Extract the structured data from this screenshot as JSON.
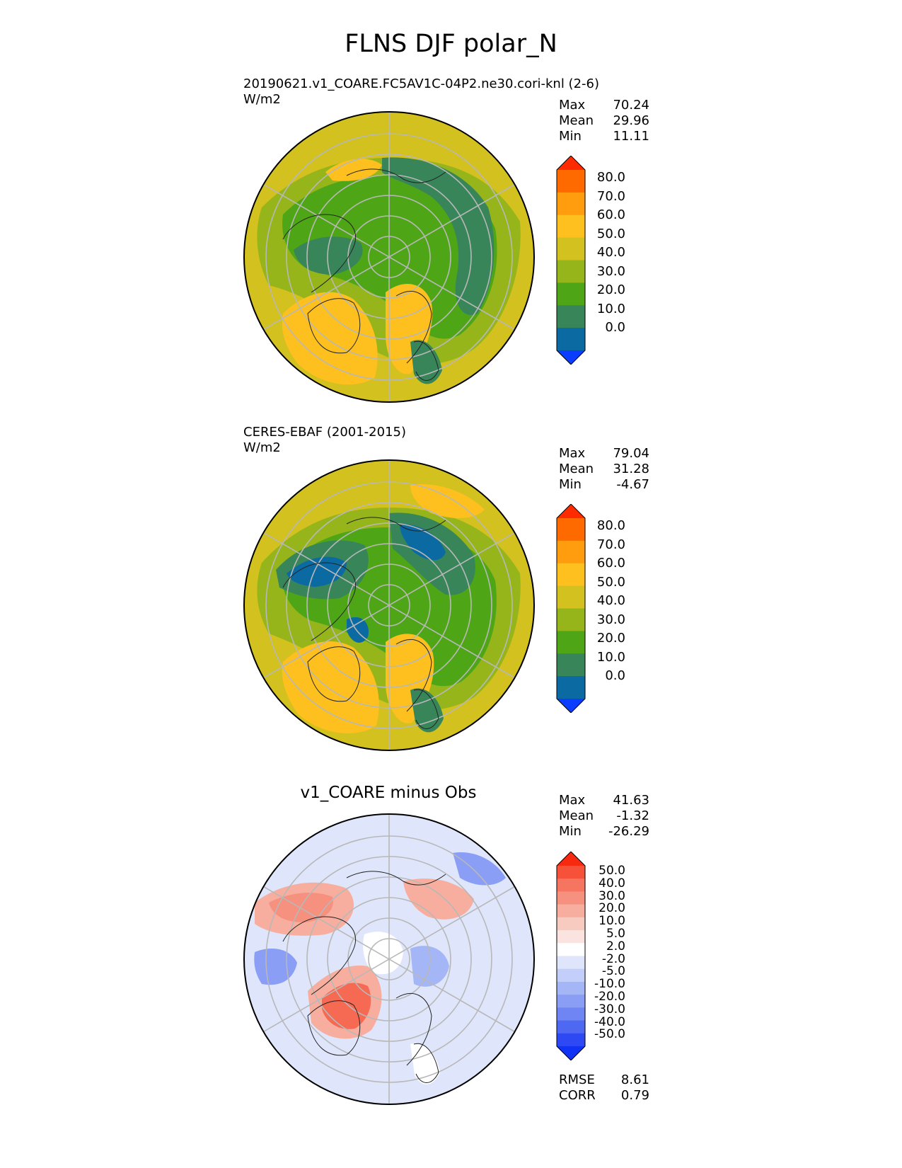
{
  "figure": {
    "title": "FLNS DJF polar_N"
  },
  "panels": [
    {
      "label": "20190621.v1_COARE.FC5AV1C-04P2.ne30.cori-knl (2-6)",
      "units": "W/m2",
      "stats": {
        "max_label": "Max",
        "max": "70.24",
        "mean_label": "Mean",
        "mean": "29.96",
        "min_label": "Min",
        "min": "11.11"
      }
    },
    {
      "label": "CERES-EBAF (2001-2015)",
      "units": "W/m2",
      "stats": {
        "max_label": "Max",
        "max": "79.04",
        "mean_label": "Mean",
        "mean": "31.28",
        "min_label": "Min",
        "min": "-4.67"
      }
    },
    {
      "title": "v1_COARE minus Obs",
      "stats": {
        "max_label": "Max",
        "max": "41.63",
        "mean_label": "Mean",
        "mean": "-1.32",
        "min_label": "Min",
        "min": "-26.29"
      },
      "metrics": {
        "rmse_label": "RMSE",
        "rmse": "8.61",
        "corr_label": "CORR",
        "corr": "0.79"
      }
    }
  ],
  "colorbar_main": {
    "ticks": [
      "80.0",
      "70.0",
      "60.0",
      "50.0",
      "40.0",
      "30.0",
      "20.0",
      "10.0",
      "0.0"
    ],
    "colors": [
      "#ff2b00",
      "#ff6a00",
      "#ff9d0e",
      "#fdc01e",
      "#d2c11e",
      "#95b51a",
      "#4ea617",
      "#38855a",
      "#0a6aa1",
      "#0a3dff"
    ]
  },
  "colorbar_diff": {
    "ticks": [
      "50.0",
      "40.0",
      "30.0",
      "20.0",
      "10.0",
      "5.0",
      "2.0",
      "-2.0",
      "-5.0",
      "-10.0",
      "-20.0",
      "-30.0",
      "-40.0",
      "-50.0"
    ],
    "colors": [
      "#f72a10",
      "#f6523a",
      "#f57560",
      "#f5917e",
      "#f7ae9f",
      "#f8cbc1",
      "#fbe4df",
      "#ffffff",
      "#dfe6fb",
      "#c3cffa",
      "#a5b6f7",
      "#8a9ef5",
      "#6e85f3",
      "#4f68f2",
      "#2e49f4",
      "#1032f5"
    ]
  },
  "map_colors": {
    "ocean_outer": "#d2c11e",
    "mid_band": "#4ea617",
    "storm_band": "#38855a",
    "warm_patch": "#fdc01e",
    "low_patch": "#0a6aa1",
    "deep_low": "#1a55d6",
    "diff_base": "#dfe6fb",
    "diff_pos": "#f5917e",
    "diff_pos_strong": "#f6523a",
    "diff_neg": "#8a9ef5",
    "diff_white": "#ffffff"
  }
}
